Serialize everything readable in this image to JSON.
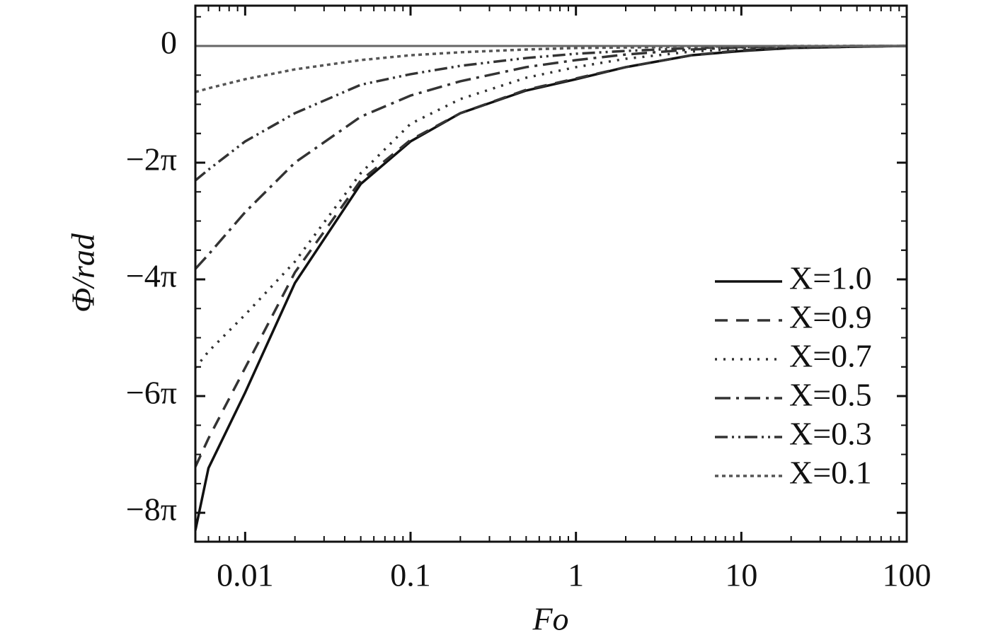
{
  "chart_data": {
    "type": "line",
    "x_label": "Fo",
    "y_label": "Φ/rad",
    "x": [
      0.005,
      0.006,
      0.01,
      0.02,
      0.05,
      0.1,
      0.2,
      0.5,
      1,
      2,
      5,
      10,
      20,
      50,
      100
    ],
    "xlim": [
      0.005,
      100
    ],
    "xticks": [
      0.01,
      0.1,
      1,
      10,
      100
    ],
    "xscale": "log",
    "ylim": [
      -26.69,
      2.17
    ],
    "yticks": [
      0,
      {
        "value": -6.2832,
        "label": "−2π"
      },
      {
        "value": -12.5664,
        "label": "−4π"
      },
      {
        "value": -18.8496,
        "label": "−6π"
      },
      {
        "value": -25.1327,
        "label": "−8π"
      }
    ],
    "legend": "right",
    "series": [
      {
        "name": "X=1.0",
        "color": "#111111",
        "dash": "none",
        "values": [
          -26.08,
          -22.73,
          -18.66,
          -12.76,
          -7.43,
          -5.14,
          -3.62,
          -2.4,
          -1.79,
          -1.14,
          -0.5,
          -0.27,
          -0.11,
          -0.04,
          0
        ]
      },
      {
        "name": "X=0.9",
        "color": "#333333",
        "dash": "18 12",
        "values": [
          -22.66,
          -21.13,
          -17.33,
          -12.19,
          -7.24,
          -5.06,
          -3.62,
          -2.36,
          -1.75,
          -1.14,
          -0.5,
          -0.23,
          -0.11,
          -0.04,
          0
        ]
      },
      {
        "name": "X=0.7",
        "color": "#333333",
        "dash": "3 9",
        "values": [
          -17.33,
          -16.45,
          -14.47,
          -11.61,
          -6.85,
          -4.19,
          -2.86,
          -1.71,
          -1.14,
          -0.69,
          -0.3,
          -0.15,
          -0.08,
          -0.02,
          0
        ]
      },
      {
        "name": "X=0.5",
        "color": "#333333",
        "dash": "22 8 4 8",
        "values": [
          -12.0,
          -11.23,
          -8.95,
          -6.28,
          -3.81,
          -2.67,
          -1.9,
          -1.14,
          -0.76,
          -0.46,
          -0.19,
          -0.08,
          -0.04,
          0,
          0
        ]
      },
      {
        "name": "X=0.3",
        "color": "#333333",
        "dash": "18 6 3 6 3 6",
        "values": [
          -7.24,
          -6.66,
          -5.14,
          -3.62,
          -2.09,
          -1.52,
          -1.07,
          -0.65,
          -0.42,
          -0.27,
          -0.11,
          -0.06,
          -0.02,
          0,
          0
        ]
      },
      {
        "name": "X=0.1",
        "color": "#555555",
        "dash": "5 5",
        "values": [
          -2.48,
          -2.28,
          -1.79,
          -1.26,
          -0.76,
          -0.5,
          -0.34,
          -0.19,
          -0.11,
          -0.08,
          -0.04,
          -0.02,
          0,
          0,
          0
        ]
      }
    ]
  }
}
